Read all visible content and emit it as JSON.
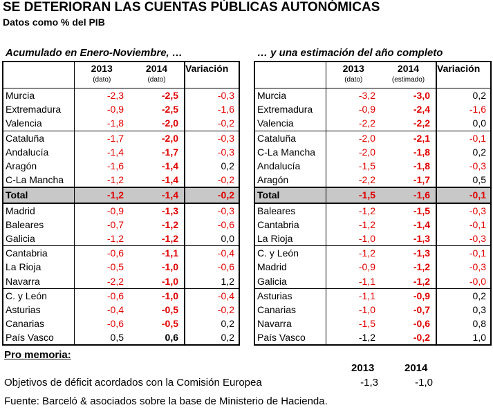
{
  "title": "SE DETERIORAN LAS CUENTAS PÚBLICAS AUTONÓMICAS",
  "subtitle": "Datos como % del PIB",
  "left": {
    "heading": "Acumulado en Enero-Noviembre, …",
    "columns": [
      "2013",
      "2014",
      "Variación"
    ],
    "subcolumns": [
      "(dato)",
      "(dato)",
      ""
    ],
    "rows": [
      {
        "name": "Murcia",
        "y2013": "-2,3",
        "y2014": "-2,5",
        "var": "-0,3",
        "neg_var": true
      },
      {
        "name": "Extremadura",
        "y2013": "-0,9",
        "y2014": "-2,5",
        "var": "-1,6",
        "neg_var": true
      },
      {
        "name": "Valencia",
        "y2013": "-1,8",
        "y2014": "-2,0",
        "var": "-0,2",
        "neg_var": true
      },
      {
        "name": "Cataluña",
        "y2013": "-1,7",
        "y2014": "-2,0",
        "var": "-0,3",
        "neg_var": true
      },
      {
        "name": "Andalucía",
        "y2013": "-1,4",
        "y2014": "-1,7",
        "var": "-0,3",
        "neg_var": true
      },
      {
        "name": "Aragón",
        "y2013": "-1,6",
        "y2014": "-1,4",
        "var": "0,2",
        "neg_var": false
      },
      {
        "name": "C-La Mancha",
        "y2013": "-1,2",
        "y2014": "-1,4",
        "var": "-0,2",
        "neg_var": true
      },
      {
        "name": "Total",
        "y2013": "-1,2",
        "y2014": "-1,4",
        "var": "-0,2",
        "neg_var": true
      },
      {
        "name": "Madrid",
        "y2013": "-0,9",
        "y2014": "-1,3",
        "var": "-0,3",
        "neg_var": true
      },
      {
        "name": "Baleares",
        "y2013": "-0,7",
        "y2014": "-1,2",
        "var": "-0,6",
        "neg_var": true
      },
      {
        "name": "Galicia",
        "y2013": "-1,2",
        "y2014": "-1,2",
        "var": "0,0",
        "neg_var": false
      },
      {
        "name": "Cantabria",
        "y2013": "-0,6",
        "y2014": "-1,1",
        "var": "-0,4",
        "neg_var": true
      },
      {
        "name": "La Rioja",
        "y2013": "-0,5",
        "y2014": "-1,0",
        "var": "-0,6",
        "neg_var": true
      },
      {
        "name": "Navarra",
        "y2013": "-2,2",
        "y2014": "-1,0",
        "var": "1,2",
        "neg_var": false
      },
      {
        "name": "C. y León",
        "y2013": "-0,6",
        "y2014": "-1,0",
        "var": "-0,4",
        "neg_var": true
      },
      {
        "name": "Asturias",
        "y2013": "-0,4",
        "y2014": "-0,5",
        "var": "-0,2",
        "neg_var": true
      },
      {
        "name": "Canarias",
        "y2013": "-0,6",
        "y2014": "-0,5",
        "var": "0,2",
        "neg_var": false
      },
      {
        "name": "País Vasco",
        "y2013": "0,5",
        "y2014": "0,6",
        "var": "0,2",
        "neg_var": false
      }
    ]
  },
  "right": {
    "heading": "… y una estimación del año completo",
    "columns": [
      "2013",
      "2014",
      "Variación"
    ],
    "subcolumns": [
      "(dato)",
      "(estimado)",
      ""
    ],
    "rows": [
      {
        "name": "Murcia",
        "y2013": "-3,2",
        "y2014": "-3,0",
        "var": "0,2",
        "neg_var": false
      },
      {
        "name": "Extremadura",
        "y2013": "-0,9",
        "y2014": "-2,4",
        "var": "-1,6",
        "neg_var": true
      },
      {
        "name": "Valencia",
        "y2013": "-2,2",
        "y2014": "-2,2",
        "var": "0,0",
        "neg_var": false
      },
      {
        "name": "Cataluña",
        "y2013": "-2,0",
        "y2014": "-2,1",
        "var": "-0,1",
        "neg_var": true
      },
      {
        "name": "C-La Mancha",
        "y2013": "-2,0",
        "y2014": "-1,8",
        "var": "0,2",
        "neg_var": false
      },
      {
        "name": "Andalucía",
        "y2013": "-1,5",
        "y2014": "-1,8",
        "var": "-0,3",
        "neg_var": true
      },
      {
        "name": "Aragón",
        "y2013": "-2,2",
        "y2014": "-1,7",
        "var": "0,5",
        "neg_var": false
      },
      {
        "name": "Total",
        "y2013": "-1,5",
        "y2014": "-1,6",
        "var": "-0,1",
        "neg_var": true
      },
      {
        "name": "Baleares",
        "y2013": "-1,2",
        "y2014": "-1,5",
        "var": "-0,3",
        "neg_var": true
      },
      {
        "name": "Cantabria",
        "y2013": "-1,2",
        "y2014": "-1,4",
        "var": "-0,1",
        "neg_var": true
      },
      {
        "name": "La Rioja",
        "y2013": "-1,0",
        "y2014": "-1,3",
        "var": "-0,3",
        "neg_var": true
      },
      {
        "name": "C. y León",
        "y2013": "-1,2",
        "y2014": "-1,3",
        "var": "-0,1",
        "neg_var": true
      },
      {
        "name": "Madrid",
        "y2013": "-0,9",
        "y2014": "-1,2",
        "var": "-0,3",
        "neg_var": true
      },
      {
        "name": "Galicia",
        "y2013": "-1,1",
        "y2014": "-1,2",
        "var": "-0,0",
        "neg_var": true
      },
      {
        "name": "Asturias",
        "y2013": "-1,1",
        "y2014": "-0,9",
        "var": "0,2",
        "neg_var": false
      },
      {
        "name": "Canarias",
        "y2013": "-1,0",
        "y2014": "-0,7",
        "var": "0,3",
        "neg_var": false
      },
      {
        "name": "Navarra",
        "y2013": "-1,5",
        "y2014": "-0,6",
        "var": "0,8",
        "neg_var": false
      },
      {
        "name": "País Vasco",
        "y2013": "-1,2",
        "y2014": "-0,2",
        "var": "1,0",
        "neg_var": false
      }
    ]
  },
  "pro_memoria": {
    "label": "Pro memoria:",
    "year_2013": "2013",
    "year_2014": "2014",
    "row_label": "Objetivos de déficit acordados con la Comisión Europea",
    "val_2013": "-1,3",
    "val_2014": "-1,0"
  },
  "source": "Fuente: Barceló & asociados sobre la base de Ministerio de Hacienda.",
  "colors": {
    "negative": "#e00000",
    "total_bg": "#c8c8c8"
  }
}
